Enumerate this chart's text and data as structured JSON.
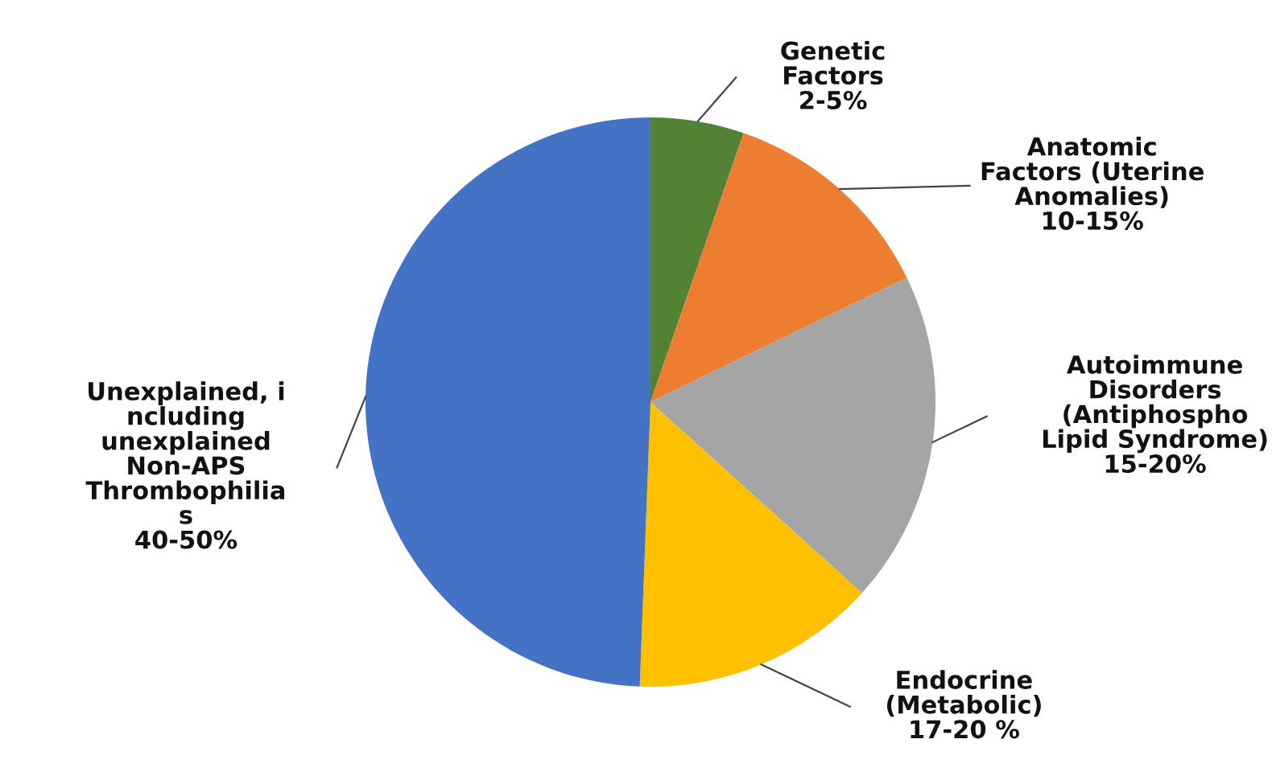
{
  "chart_data": {
    "type": "pie",
    "categories": [
      "Genetic\nFactors\n2-5%",
      "Anatomic\nFactors (Uterine\nAnomalies)\n10-15%",
      "Autoimmune\nDisorders\n(Antiphospho\nLipid Syndrome)\n15-20%",
      "Endocrine\n(Metabolic)\n17-20 %",
      "Unexplained, i\nncluding\nunexplained\nNon-APS\nThrombophilia\ns\n40-50%"
    ],
    "values": [
      5.3,
      12.5,
      18.9,
      13.9,
      49.4
    ],
    "colors": [
      "#548235",
      "#ed7d31",
      "#a5a5a5",
      "#ffc000",
      "#4472c4"
    ]
  }
}
